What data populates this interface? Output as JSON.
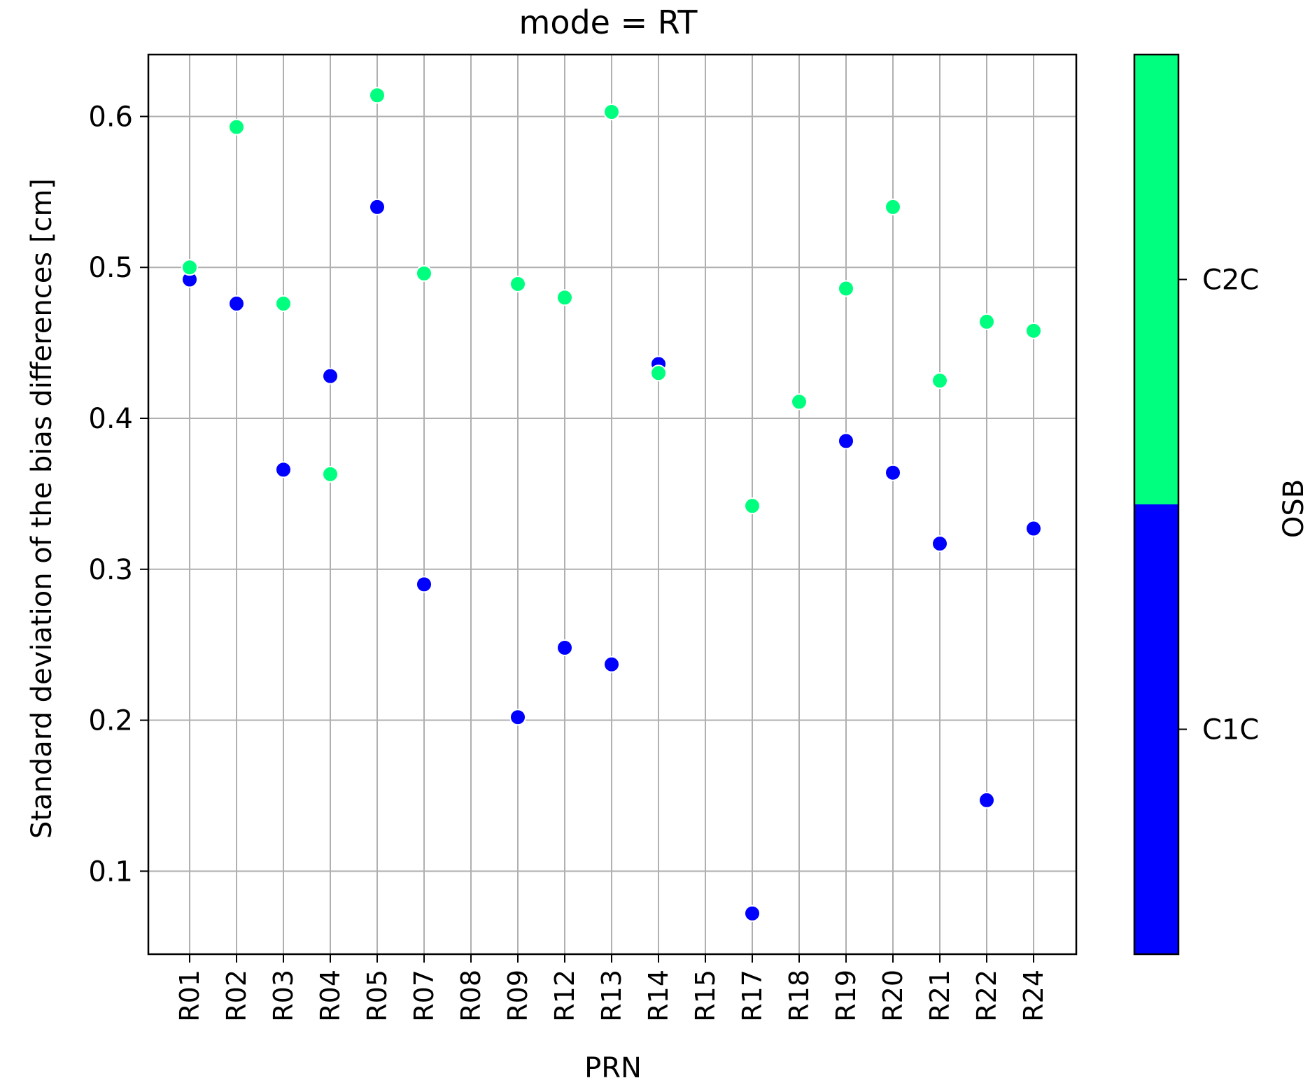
{
  "chart_data": {
    "type": "scatter",
    "title": "mode = RT",
    "xlabel": "PRN",
    "ylabel": "Standard deviation of the bias differences [cm]",
    "categories": [
      "R01",
      "R02",
      "R03",
      "R04",
      "R05",
      "R07",
      "R08",
      "R09",
      "R12",
      "R13",
      "R14",
      "R15",
      "R17",
      "R18",
      "R19",
      "R20",
      "R21",
      "R22",
      "R24"
    ],
    "ylim": [
      0.045,
      0.641
    ],
    "yticks": [
      "0.1",
      "0.2",
      "0.3",
      "0.4",
      "0.5",
      "0.6"
    ],
    "ytick_values": [
      0.1,
      0.2,
      0.3,
      0.4,
      0.5,
      0.6
    ],
    "grid": true,
    "series": [
      {
        "name": "C1C",
        "color": "#0000ff",
        "points": [
          {
            "x": "R01",
            "y": 0.492
          },
          {
            "x": "R02",
            "y": 0.476
          },
          {
            "x": "R03",
            "y": 0.366
          },
          {
            "x": "R04",
            "y": 0.428
          },
          {
            "x": "R05",
            "y": 0.54
          },
          {
            "x": "R07",
            "y": 0.29
          },
          {
            "x": "R09",
            "y": 0.202
          },
          {
            "x": "R12",
            "y": 0.248
          },
          {
            "x": "R13",
            "y": 0.237
          },
          {
            "x": "R14",
            "y": 0.436
          },
          {
            "x": "R17",
            "y": 0.072
          },
          {
            "x": "R19",
            "y": 0.385
          },
          {
            "x": "R20",
            "y": 0.364
          },
          {
            "x": "R21",
            "y": 0.317
          },
          {
            "x": "R22",
            "y": 0.147
          },
          {
            "x": "R24",
            "y": 0.327
          }
        ]
      },
      {
        "name": "C2C",
        "color": "#00ff7f",
        "points": [
          {
            "x": "R01",
            "y": 0.5
          },
          {
            "x": "R02",
            "y": 0.593
          },
          {
            "x": "R03",
            "y": 0.476
          },
          {
            "x": "R04",
            "y": 0.363
          },
          {
            "x": "R05",
            "y": 0.614
          },
          {
            "x": "R07",
            "y": 0.496
          },
          {
            "x": "R09",
            "y": 0.489
          },
          {
            "x": "R12",
            "y": 0.48
          },
          {
            "x": "R13",
            "y": 0.603
          },
          {
            "x": "R14",
            "y": 0.43
          },
          {
            "x": "R17",
            "y": 0.342
          },
          {
            "x": "R18",
            "y": 0.411
          },
          {
            "x": "R19",
            "y": 0.486
          },
          {
            "x": "R20",
            "y": 0.54
          },
          {
            "x": "R21",
            "y": 0.425
          },
          {
            "x": "R22",
            "y": 0.464
          },
          {
            "x": "R24",
            "y": 0.458
          }
        ]
      }
    ],
    "colorbar": {
      "label": "OSB",
      "entries": [
        {
          "label": "C1C",
          "color": "#0000ff"
        },
        {
          "label": "C2C",
          "color": "#00ff7f"
        }
      ]
    }
  }
}
